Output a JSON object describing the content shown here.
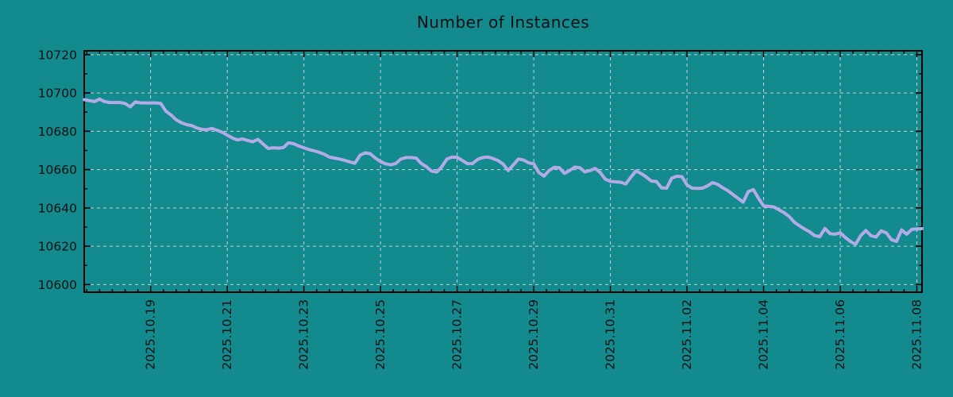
{
  "chart_data": {
    "type": "line",
    "title": "Number of Instances",
    "xlabel": "",
    "ylabel": "",
    "legend": "none",
    "grid": "dashed",
    "ylim": [
      10596,
      10722
    ],
    "y_ticks": [
      10600,
      10620,
      10640,
      10660,
      10680,
      10700,
      10720
    ],
    "y_minor_step": 10,
    "x_axis": {
      "total_days": 21.87,
      "first_major_tick_day": 1.735,
      "major_step_days": 2,
      "minor_step_days": 0.33333,
      "tick_labels": [
        "2025.10.19",
        "2025.10.21",
        "2025.10.23",
        "2025.10.25",
        "2025.10.27",
        "2025.10.29",
        "2025.10.31",
        "2025.11.02",
        "2025.11.04",
        "2025.11.06",
        "2025.11.08"
      ]
    },
    "series": [
      {
        "name": "instances",
        "sampling": "evenly spaced across full x-range",
        "values": [
          10696.5,
          10696,
          10695.5,
          10696.8,
          10695.5,
          10695,
          10695,
          10695,
          10694.5,
          10692.8,
          10695.3,
          10694.8,
          10694.8,
          10694.8,
          10694.8,
          10694.5,
          10690.5,
          10688.5,
          10686,
          10684.5,
          10683.5,
          10683,
          10681.8,
          10681,
          10680.8,
          10681.5,
          10680.5,
          10679.5,
          10678,
          10676.5,
          10675.5,
          10676,
          10675.2,
          10674.5,
          10675.8,
          10673.4,
          10671,
          10671.4,
          10671.2,
          10671.5,
          10674,
          10673.5,
          10672.3,
          10671.4,
          10670.5,
          10669.8,
          10669,
          10668,
          10666.5,
          10666,
          10665.5,
          10664.8,
          10664,
          10663.3,
          10667.5,
          10668.8,
          10668.3,
          10666,
          10664.2,
          10663,
          10662.5,
          10663.2,
          10665.5,
          10666.3,
          10666.3,
          10666,
          10663.1,
          10661.5,
          10659.2,
          10658.7,
          10661.5,
          10665.5,
          10666.5,
          10666.4,
          10664.8,
          10663.1,
          10663.1,
          10665.3,
          10666.3,
          10666.6,
          10665.8,
          10664.7,
          10662.9,
          10659.5,
          10662.5,
          10665.5,
          10665,
          10663.5,
          10663,
          10658.5,
          10656.6,
          10659.5,
          10661.2,
          10661,
          10658,
          10659.5,
          10661.3,
          10661,
          10658.8,
          10659.5,
          10660.6,
          10658.5,
          10655,
          10653.8,
          10653.6,
          10653.4,
          10652.5,
          10656,
          10659.3,
          10658,
          10656.2,
          10654,
          10653.8,
          10650.5,
          10650.3,
          10655.5,
          10656.5,
          10656.3,
          10652,
          10650.3,
          10650.2,
          10650.3,
          10651.5,
          10653.2,
          10652.3,
          10650.5,
          10649,
          10647,
          10645,
          10643,
          10648.5,
          10649.5,
          10645,
          10641,
          10640.8,
          10640.5,
          10639,
          10637.5,
          10635.5,
          10632.5,
          10630.7,
          10629,
          10627.5,
          10625.5,
          10625,
          10629.3,
          10626.5,
          10626.3,
          10627,
          10624.5,
          10622.5,
          10621,
          10625.5,
          10628.2,
          10625.5,
          10624.8,
          10628,
          10627,
          10623.5,
          10622.5,
          10628.5,
          10626.3,
          10628.8,
          10629,
          10629.2
        ]
      }
    ],
    "colors": {
      "background": "#138a8d",
      "line": "#b3abe8",
      "grid": "#c6d4d4",
      "axis": "#000000",
      "text": "#111111"
    }
  }
}
